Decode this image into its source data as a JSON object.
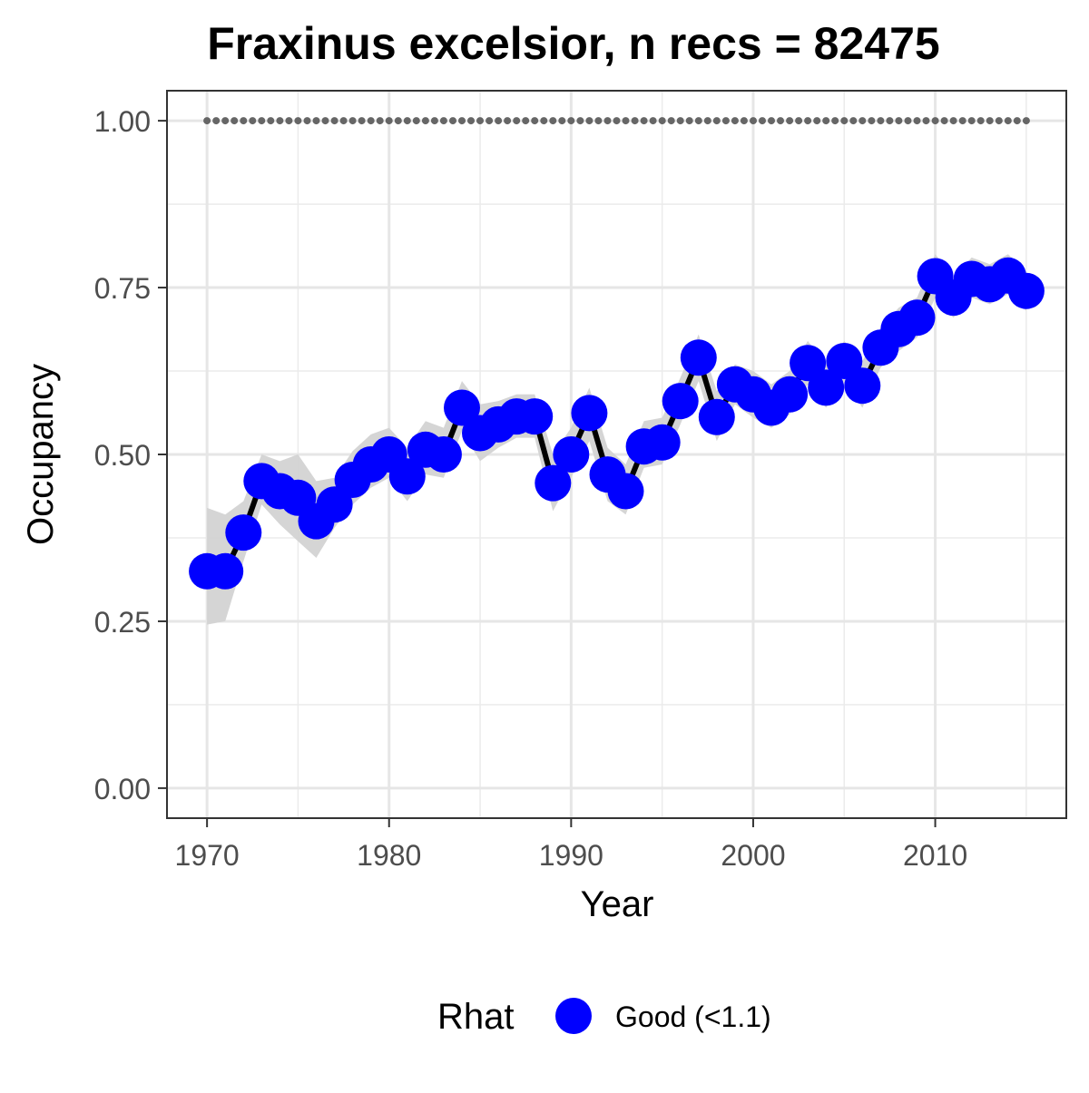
{
  "chart_data": {
    "type": "line",
    "title": "Fraxinus excelsior, n recs = 82475",
    "xlabel": "Year",
    "ylabel": "Occupancy",
    "xlim": [
      1967.8,
      2017.2
    ],
    "ylim": [
      -0.045,
      1.045
    ],
    "x_ticks": [
      1970,
      1980,
      1990,
      2000,
      2010
    ],
    "x_tick_labels": [
      "1970",
      "1980",
      "1990",
      "2000",
      "2010"
    ],
    "y_ticks": [
      0,
      0.25,
      0.5,
      0.75,
      1.0
    ],
    "y_tick_labels": [
      "0.00",
      "0.25",
      "0.50",
      "0.75",
      "1.00"
    ],
    "grid": true,
    "legend": {
      "position": "bottom",
      "title": "Rhat",
      "entries": [
        {
          "label": "Good (<1.1)",
          "color": "#0000ff"
        }
      ]
    },
    "colors": {
      "points": "#0000ff",
      "line": "#000000",
      "ribbon": "#d3d3d3",
      "reference": "#666666"
    },
    "reference_line": {
      "y": 1.0,
      "style": "dotted",
      "x_start": 1970,
      "x_end": 2015
    },
    "series": [
      {
        "x": [
          1970,
          1971,
          1972,
          1973,
          1974,
          1975,
          1976,
          1977,
          1978,
          1979,
          1980,
          1981,
          1982,
          1983,
          1984,
          1985,
          1986,
          1987,
          1988,
          1989,
          1990,
          1991,
          1992,
          1993,
          1994,
          1995,
          1996,
          1997,
          1998,
          1999,
          2000,
          2001,
          2002,
          2003,
          2004,
          2005,
          2006,
          2007,
          2008,
          2009,
          2010,
          2011,
          2012,
          2013,
          2014,
          2015
        ],
        "y": [
          0.325,
          0.325,
          0.383,
          0.46,
          0.445,
          0.435,
          0.4,
          0.425,
          0.462,
          0.485,
          0.5,
          0.467,
          0.507,
          0.5,
          0.57,
          0.532,
          0.545,
          0.557,
          0.557,
          0.457,
          0.5,
          0.562,
          0.47,
          0.445,
          0.512,
          0.518,
          0.58,
          0.645,
          0.556,
          0.605,
          0.59,
          0.57,
          0.59,
          0.637,
          0.6,
          0.64,
          0.603,
          0.66,
          0.688,
          0.705,
          0.767,
          0.735,
          0.763,
          0.755,
          0.768,
          0.745
        ],
        "lower": [
          0.245,
          0.25,
          0.34,
          0.425,
          0.395,
          0.37,
          0.345,
          0.39,
          0.425,
          0.45,
          0.465,
          0.43,
          0.47,
          0.465,
          0.535,
          0.49,
          0.51,
          0.525,
          0.525,
          0.415,
          0.465,
          0.52,
          0.43,
          0.41,
          0.48,
          0.485,
          0.545,
          0.61,
          0.52,
          0.575,
          0.555,
          0.54,
          0.56,
          0.605,
          0.57,
          0.61,
          0.57,
          0.63,
          0.655,
          0.675,
          0.735,
          0.705,
          0.735,
          0.725,
          0.74,
          0.715
        ],
        "upper": [
          0.42,
          0.41,
          0.43,
          0.5,
          0.49,
          0.5,
          0.46,
          0.465,
          0.505,
          0.53,
          0.54,
          0.51,
          0.55,
          0.54,
          0.61,
          0.575,
          0.58,
          0.59,
          0.59,
          0.5,
          0.54,
          0.6,
          0.51,
          0.485,
          0.55,
          0.555,
          0.615,
          0.68,
          0.595,
          0.635,
          0.625,
          0.605,
          0.625,
          0.67,
          0.635,
          0.67,
          0.64,
          0.69,
          0.72,
          0.735,
          0.8,
          0.765,
          0.795,
          0.785,
          0.8,
          0.775
        ]
      }
    ]
  }
}
